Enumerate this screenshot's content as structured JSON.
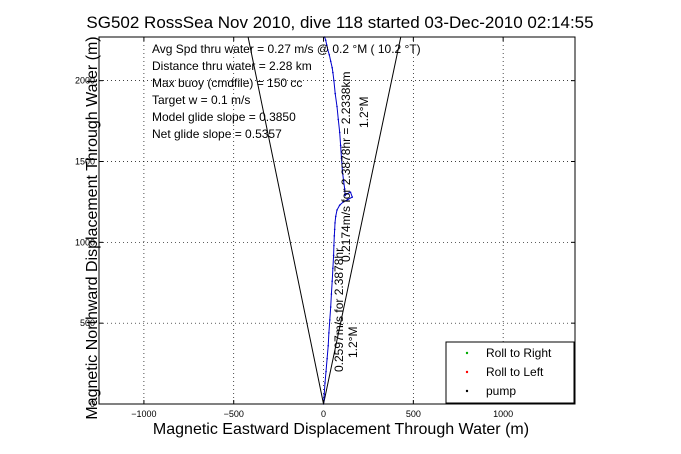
{
  "chart_data": {
    "type": "line",
    "title": "SG502 RossSea Nov 2010, dive 118 started 03-Dec-2010 02:14:55",
    "xlabel": "Magnetic Eastward Displacement Through Water (m)",
    "ylabel": "Magnetic Northward Displacement Through Water (m)",
    "xlim": [
      -1250,
      1400
    ],
    "ylim": [
      0,
      2270
    ],
    "x_ticks": [
      -1000,
      -500,
      0,
      500,
      1000
    ],
    "y_ticks": [
      0,
      500,
      1000,
      1500,
      2000
    ],
    "x_tick_labels": [
      "−1000",
      "−500",
      "0",
      "500",
      "1000"
    ],
    "y_tick_labels": [
      "0",
      "500",
      "1000",
      "1500",
      "2000"
    ],
    "grid": true,
    "legend_position": "bottom-right",
    "legend": [
      {
        "label": "Roll to Right",
        "color": "#00aa00"
      },
      {
        "label": "Roll to Left",
        "color": "#ff0000"
      },
      {
        "label": "pump",
        "color": "#000000"
      }
    ],
    "annotations": [
      "Avg Spd thru water =  0.27 m/s @   0.2   °M ( 10.2 °T)",
      "Distance thru water =  2.28 km",
      "Max buoy (cmdfile) = 150 cc",
      "Target w = 0.1 m/s",
      "Model glide slope = 0.3850",
      "Net glide slope = 0.5357"
    ],
    "rotated_labels": {
      "upper_heading": "1.2°M",
      "upper_track": "0.2174m/s for 2.3878hr = 2.2338km",
      "lower_track": "0.2597m/s for 2.3878hr",
      "lower_heading": "1.2°M"
    },
    "cone_lines": [
      {
        "from": [
          0,
          0
        ],
        "to": [
          -420,
          2270
        ]
      },
      {
        "from": [
          0,
          0
        ],
        "to": [
          430,
          2270
        ]
      }
    ],
    "series": [
      {
        "name": "track",
        "color": "#0000cc",
        "x": [
          0,
          4,
          8,
          14,
          20,
          26,
          30,
          35,
          40,
          44,
          48,
          52,
          56,
          58,
          60,
          62,
          64,
          68,
          75,
          90,
          110,
          135,
          160,
          150,
          130,
          120,
          118,
          112,
          105,
          100,
          95,
          90,
          82,
          75,
          65,
          58,
          52,
          48,
          40,
          32,
          24,
          18,
          12,
          6
        ],
        "y": [
          0,
          60,
          130,
          200,
          280,
          360,
          440,
          520,
          600,
          680,
          760,
          840,
          920,
          980,
          1040,
          1080,
          1120,
          1160,
          1200,
          1230,
          1250,
          1265,
          1280,
          1310,
          1300,
          1290,
          1330,
          1380,
          1440,
          1520,
          1600,
          1680,
          1760,
          1840,
          1920,
          2000,
          2050,
          2080,
          2120,
          2160,
          2190,
          2220,
          2250,
          2270
        ]
      }
    ]
  }
}
